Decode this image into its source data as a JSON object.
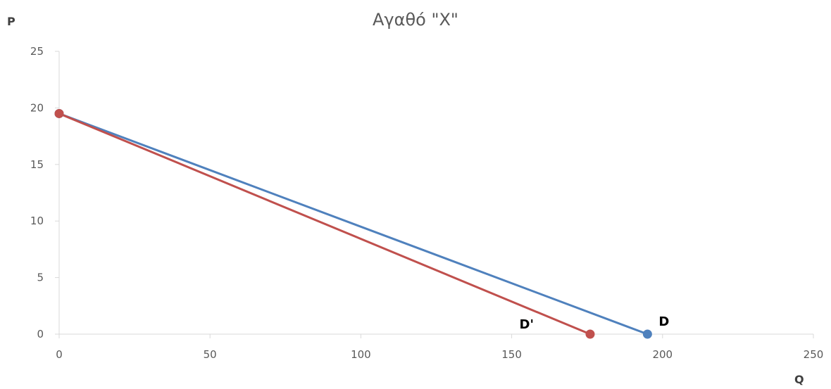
{
  "chart_data": {
    "type": "line",
    "title": "Αγαθό \"X\"",
    "xlabel": "Q",
    "ylabel": "P",
    "xlim": [
      0,
      250
    ],
    "ylim": [
      0,
      25
    ],
    "x_ticks": [
      "0",
      "50",
      "100",
      "150",
      "200",
      "250"
    ],
    "y_ticks": [
      "0",
      "5",
      "10",
      "15",
      "20",
      "25"
    ],
    "grid": false,
    "series": [
      {
        "name": "D",
        "color": "#4F81BD",
        "points": [
          {
            "x": 0,
            "y": 19.5
          },
          {
            "x": 195,
            "y": 0
          }
        ],
        "label_anchor": {
          "x": 195,
          "y": 0
        }
      },
      {
        "name": "D'",
        "color": "#C0504D",
        "points": [
          {
            "x": 0,
            "y": 19.5
          },
          {
            "x": 176,
            "y": 0
          }
        ],
        "label_anchor": {
          "x": 176,
          "y": 0
        }
      }
    ]
  }
}
